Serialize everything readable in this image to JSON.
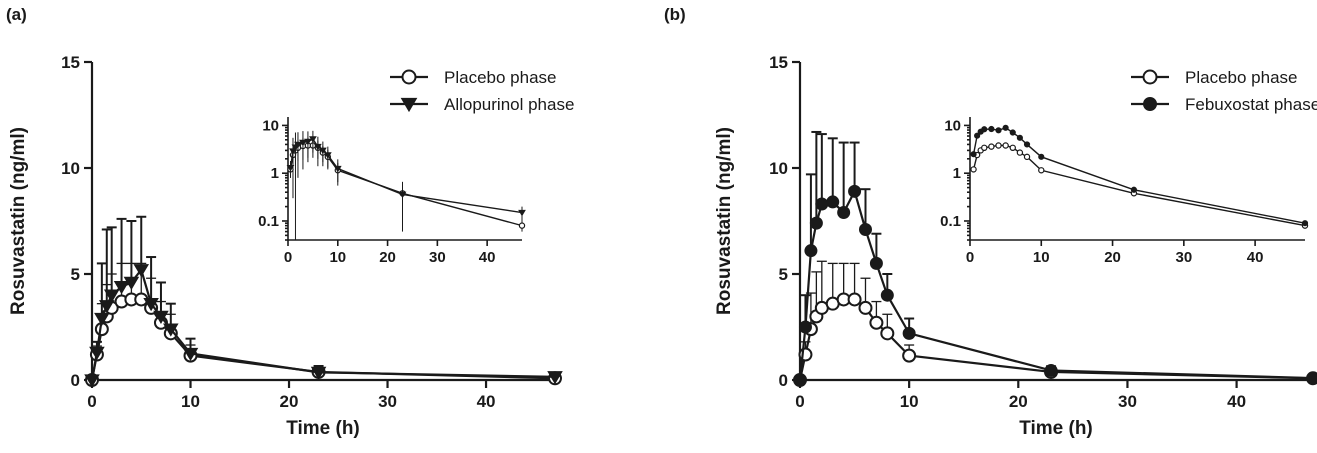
{
  "panels": [
    {
      "label": "(a)"
    },
    {
      "label": "(b)"
    }
  ],
  "chart_data": [
    {
      "type": "line",
      "panel": "(a)",
      "xlabel": "Time (h)",
      "ylabel": "Rosuvastatin (ng/ml)",
      "xlim": [
        0,
        47
      ],
      "ylim": [
        0,
        15
      ],
      "xticks": [
        0,
        10,
        20,
        30,
        40
      ],
      "yticks": [
        0,
        5,
        10,
        15
      ],
      "legend_position": "top-right",
      "series": [
        {
          "name": "Placebo phase",
          "marker": "open-circle",
          "x": [
            0,
            0.5,
            1,
            1.5,
            2,
            3,
            4,
            5,
            6,
            7,
            8,
            10,
            23,
            47
          ],
          "y": [
            0,
            1.2,
            2.4,
            3.0,
            3.4,
            3.7,
            3.8,
            3.8,
            3.4,
            2.7,
            2.2,
            1.15,
            0.38,
            0.08
          ],
          "err": [
            0,
            0.4,
            1.2,
            1.5,
            1.6,
            1.8,
            1.7,
            1.7,
            1.4,
            1.0,
            0.9,
            0.5,
            0.2,
            0.02
          ]
        },
        {
          "name": "Allopurinol phase",
          "marker": "filled-triangle-down",
          "x": [
            0,
            0.5,
            1,
            1.5,
            2,
            3,
            4,
            5,
            6,
            7,
            8,
            10,
            23,
            47
          ],
          "y": [
            0,
            1.3,
            2.9,
            3.5,
            4.0,
            4.4,
            4.6,
            5.2,
            3.6,
            3.0,
            2.4,
            1.25,
            0.36,
            0.15
          ],
          "err": [
            0,
            0.5,
            2.6,
            3.6,
            3.2,
            3.2,
            2.9,
            2.5,
            2.2,
            1.6,
            1.2,
            0.7,
            0.3,
            0.05
          ]
        }
      ],
      "inset": {
        "scale": "log",
        "xlim": [
          0,
          47
        ],
        "ylim": [
          0.04,
          15
        ],
        "xticks": [
          0,
          10,
          20,
          30,
          40
        ],
        "ytick_labels": [
          "0.1",
          "1",
          "10"
        ]
      }
    },
    {
      "type": "line",
      "panel": "(b)",
      "xlabel": "Time (h)",
      "ylabel": "Rosuvastatin (ng/ml)",
      "xlim": [
        0,
        47
      ],
      "ylim": [
        0,
        15
      ],
      "xticks": [
        0,
        10,
        20,
        30,
        40
      ],
      "yticks": [
        0,
        5,
        10,
        15
      ],
      "legend_position": "top-right",
      "series": [
        {
          "name": "Placebo phase",
          "marker": "open-circle",
          "x": [
            0,
            0.5,
            1,
            1.5,
            2,
            3,
            4,
            5,
            6,
            7,
            8,
            10,
            23,
            47
          ],
          "y": [
            0,
            1.2,
            2.4,
            3.0,
            3.4,
            3.6,
            3.8,
            3.8,
            3.4,
            2.7,
            2.2,
            1.15,
            0.38,
            0.08
          ],
          "err": [
            0,
            0.6,
            1.7,
            2.1,
            2.2,
            1.9,
            1.7,
            1.7,
            1.4,
            1.0,
            0.9,
            0.5,
            0.2,
            0.02
          ]
        },
        {
          "name": "Febuxostat phase",
          "marker": "filled-circle",
          "x": [
            0,
            0.5,
            1,
            1.5,
            2,
            3,
            4,
            5,
            6,
            7,
            8,
            10,
            23,
            47
          ],
          "y": [
            0,
            2.5,
            6.1,
            7.4,
            8.3,
            8.4,
            7.9,
            8.9,
            7.1,
            5.5,
            4.0,
            2.2,
            0.45,
            0.09
          ],
          "err": [
            0,
            1.5,
            3.6,
            4.3,
            3.3,
            3.0,
            3.3,
            2.3,
            1.9,
            1.4,
            1.0,
            0.7,
            0.2,
            0.02
          ]
        }
      ],
      "inset": {
        "scale": "log",
        "xlim": [
          0,
          47
        ],
        "ylim": [
          0.04,
          15
        ],
        "xticks": [
          0,
          10,
          20,
          30,
          40
        ],
        "ytick_labels": [
          "0.1",
          "1",
          "10"
        ]
      }
    }
  ]
}
